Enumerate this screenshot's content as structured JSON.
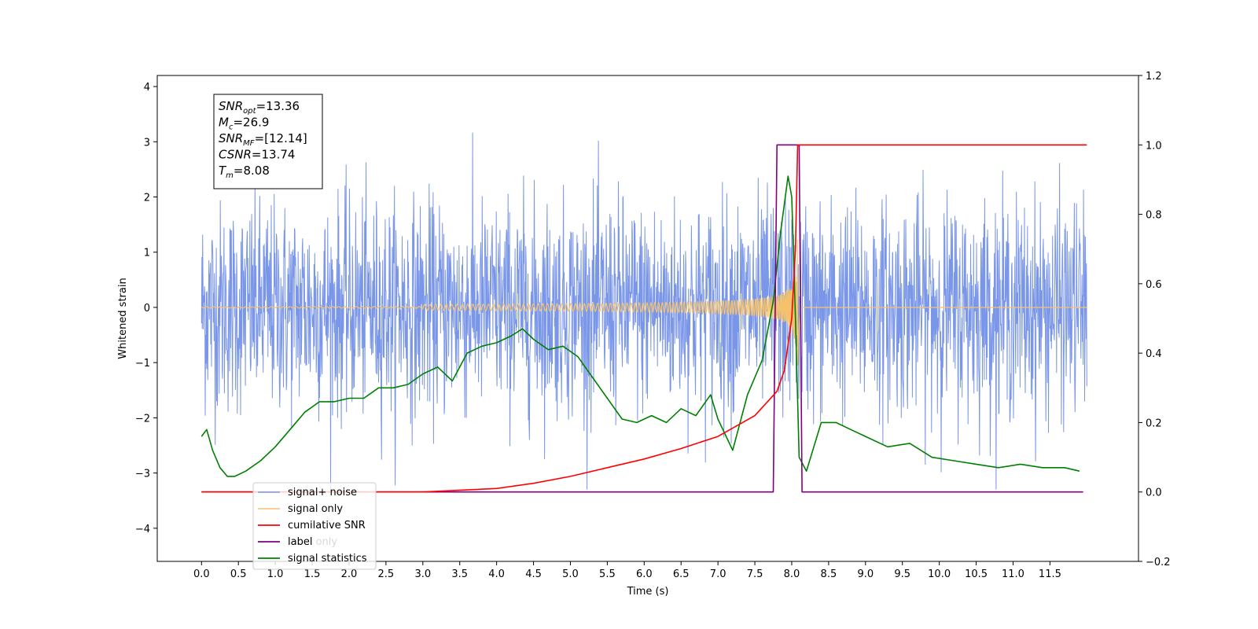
{
  "chart_data": {
    "type": "line",
    "xlabel": "Time (s)",
    "ylabel": "Whitened strain",
    "xlim": [
      -0.6,
      12.7
    ],
    "ylim": [
      -4.6,
      4.2
    ],
    "y2lim": [
      -0.2,
      1.2
    ],
    "xticks": [
      "0.0",
      "0.5",
      "1.0",
      "1.5",
      "2.0",
      "2.5",
      "3.0",
      "3.5",
      "4.0",
      "4.5",
      "5.0",
      "5.5",
      "6.0",
      "6.5",
      "7.0",
      "7.5",
      "8.0",
      "8.5",
      "9.0",
      "9.5",
      "10.0",
      "10.5",
      "11.0",
      "11.5"
    ],
    "yticks": [
      "4",
      "3",
      "2",
      "1",
      "0",
      "−1",
      "−2",
      "−3",
      "−4"
    ],
    "y2ticks": [
      "1.2",
      "1.0",
      "0.8",
      "0.6",
      "0.4",
      "0.2",
      "0.0",
      "−0.2"
    ],
    "grid": false,
    "legend_position": "lower-left",
    "stats_box": {
      "lines": [
        {
          "sym": "SNR",
          "sub": "opt",
          "val": "=13.36"
        },
        {
          "sym": "M",
          "sub": "c",
          "val": "=26.9"
        },
        {
          "sym": "SNR",
          "sub": "MF",
          "val": "=[12.14]"
        },
        {
          "sym": "CSNR",
          "sub": "",
          "val": "=13.74"
        },
        {
          "sym": "T",
          "sub": "m",
          "val": "=8.08"
        }
      ]
    },
    "series": [
      {
        "name": "signal+ noise",
        "color": "#7a96e8",
        "axis": "left",
        "noise_sigma": 0.95,
        "t_range": [
          0,
          12
        ]
      },
      {
        "name": "signal only",
        "color": "#f5c26b",
        "axis": "left",
        "chirp_peak_time": 8.08,
        "chirp_max_amplitude": 1.3
      },
      {
        "name": "cumilative SNR",
        "color": "#ff0000",
        "axis": "right",
        "x": [
          0,
          3.0,
          4.0,
          4.5,
          5.0,
          5.5,
          6.0,
          6.5,
          7.0,
          7.5,
          7.8,
          7.9,
          8.0,
          8.05,
          8.08,
          12.0
        ],
        "y": [
          0.0,
          0.0,
          0.01,
          0.025,
          0.045,
          0.07,
          0.095,
          0.125,
          0.16,
          0.22,
          0.29,
          0.35,
          0.5,
          0.7,
          1.0,
          1.0
        ]
      },
      {
        "name": "label",
        "color": "#800080",
        "axis": "right",
        "x": [
          0,
          7.75,
          7.8,
          8.1,
          8.14,
          11.95
        ],
        "y": [
          0.0,
          0.0,
          1.0,
          1.0,
          0.0,
          0.0
        ]
      },
      {
        "name": "label only",
        "color": "#cfcfcf",
        "axis": "right",
        "x": [],
        "y": []
      },
      {
        "name": "signal statistics",
        "color": "#008000",
        "axis": "right",
        "x": [
          0,
          0.07,
          0.15,
          0.25,
          0.35,
          0.45,
          0.6,
          0.8,
          1.0,
          1.2,
          1.4,
          1.6,
          1.8,
          2.0,
          2.2,
          2.4,
          2.6,
          2.8,
          3.0,
          3.2,
          3.4,
          3.6,
          3.8,
          4.0,
          4.2,
          4.35,
          4.5,
          4.7,
          4.9,
          5.1,
          5.3,
          5.5,
          5.7,
          5.9,
          6.1,
          6.3,
          6.5,
          6.7,
          6.9,
          7.0,
          7.2,
          7.4,
          7.6,
          7.75,
          7.85,
          7.95,
          8.0,
          8.05,
          8.1,
          8.2,
          8.4,
          8.6,
          8.8,
          9.0,
          9.3,
          9.6,
          9.9,
          10.2,
          10.5,
          10.8,
          11.1,
          11.4,
          11.7,
          11.9
        ],
        "y": [
          0.16,
          0.18,
          0.12,
          0.07,
          0.045,
          0.045,
          0.06,
          0.09,
          0.13,
          0.18,
          0.23,
          0.26,
          0.26,
          0.27,
          0.27,
          0.3,
          0.3,
          0.31,
          0.34,
          0.36,
          0.32,
          0.4,
          0.42,
          0.43,
          0.45,
          0.47,
          0.44,
          0.41,
          0.42,
          0.39,
          0.33,
          0.27,
          0.21,
          0.2,
          0.22,
          0.2,
          0.24,
          0.22,
          0.28,
          0.21,
          0.12,
          0.28,
          0.38,
          0.55,
          0.75,
          0.91,
          0.85,
          0.5,
          0.1,
          0.06,
          0.2,
          0.2,
          0.18,
          0.16,
          0.13,
          0.14,
          0.1,
          0.09,
          0.08,
          0.07,
          0.08,
          0.07,
          0.07,
          0.06
        ]
      }
    ]
  }
}
